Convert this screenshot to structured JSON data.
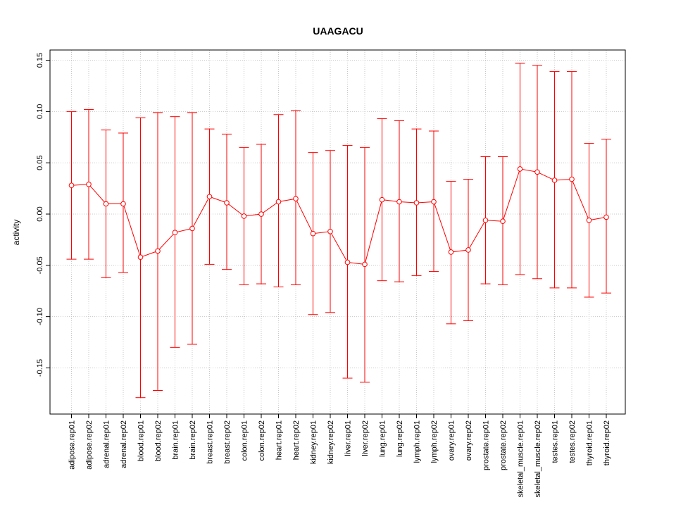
{
  "chart_data": {
    "type": "line",
    "title": "UAAGACU",
    "ylabel": "activity",
    "xlabel": "",
    "ylim": [
      -0.195,
      0.16
    ],
    "y_ticks": [
      -0.15,
      -0.1,
      -0.05,
      0.0,
      0.05,
      0.1,
      0.15
    ],
    "y_tick_labels": [
      "-0.15",
      "-0.10",
      "-0.05",
      "0.00",
      "0.05",
      "0.10",
      "0.15"
    ],
    "grid": true,
    "color": "#ff0000",
    "categories": [
      "adipose.rep01",
      "adipose.rep02",
      "adrenal.rep01",
      "adrenal.rep02",
      "blood.rep01",
      "blood.rep02",
      "brain.rep01",
      "brain.rep02",
      "breast.rep01",
      "breast.rep02",
      "colon.rep01",
      "colon.rep02",
      "heart.rep01",
      "heart.rep02",
      "kidney.rep01",
      "kidney.rep02",
      "liver.rep01",
      "liver.rep02",
      "lung.rep01",
      "lung.rep02",
      "lymph.rep01",
      "lymph.rep02",
      "ovary.rep01",
      "ovary.rep02",
      "prostate.rep01",
      "prostate.rep02",
      "skeletal_muscle.rep01",
      "skeletal_muscle.rep02",
      "testes.rep01",
      "testes.rep02",
      "thyroid.rep01",
      "thyroid.rep02"
    ],
    "values": [
      0.028,
      0.029,
      0.01,
      0.01,
      -0.042,
      -0.036,
      -0.018,
      -0.014,
      0.017,
      0.011,
      -0.002,
      0.0,
      0.012,
      0.015,
      -0.019,
      -0.017,
      -0.047,
      -0.049,
      0.014,
      0.012,
      0.011,
      0.012,
      -0.037,
      -0.035,
      -0.006,
      -0.007,
      0.044,
      0.041,
      0.033,
      0.034,
      -0.006,
      -0.003
    ],
    "upper": [
      0.1,
      0.102,
      0.082,
      0.079,
      0.094,
      0.099,
      0.095,
      0.099,
      0.083,
      0.078,
      0.065,
      0.068,
      0.097,
      0.101,
      0.06,
      0.062,
      0.067,
      0.065,
      0.093,
      0.091,
      0.083,
      0.081,
      0.032,
      0.034,
      0.056,
      0.056,
      0.147,
      0.145,
      0.139,
      0.139,
      0.069,
      0.073
    ],
    "lower": [
      -0.044,
      -0.044,
      -0.062,
      -0.057,
      -0.179,
      -0.172,
      -0.13,
      -0.127,
      -0.049,
      -0.054,
      -0.069,
      -0.068,
      -0.071,
      -0.069,
      -0.098,
      -0.096,
      -0.16,
      -0.164,
      -0.065,
      -0.066,
      -0.06,
      -0.056,
      -0.107,
      -0.104,
      -0.068,
      -0.069,
      -0.059,
      -0.063,
      -0.072,
      -0.072,
      -0.081,
      -0.077
    ]
  }
}
